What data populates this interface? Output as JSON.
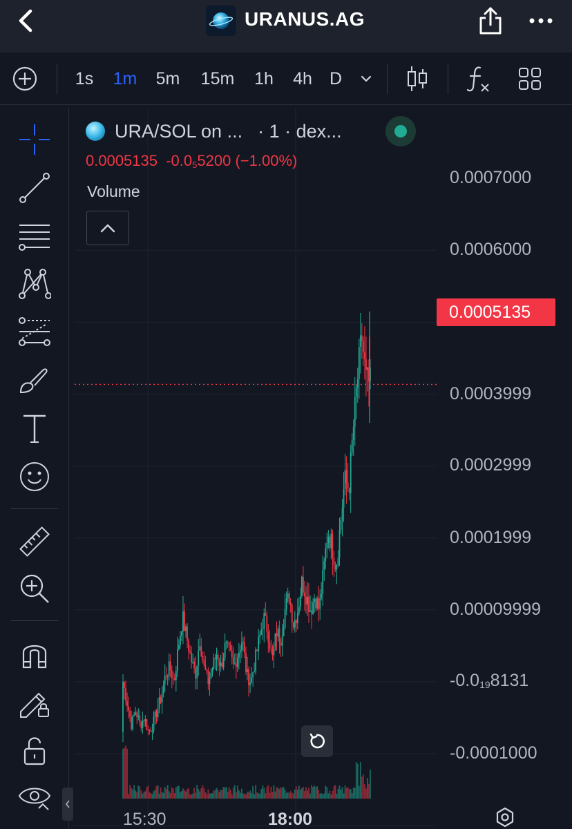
{
  "header": {
    "title": "URANUS.AG",
    "back_icon": "chevron-left-icon",
    "share_icon": "share-icon",
    "more_icon": "more-horizontal-icon"
  },
  "toolbar": {
    "intervals": [
      "1s",
      "1m",
      "5m",
      "15m",
      "1h",
      "4h",
      "D"
    ],
    "active_interval": "1m",
    "tools": [
      "add-symbol-icon",
      "dropdown-chevron-icon",
      "candlestick-icon",
      "indicators-icon",
      "layout-grid-icon"
    ]
  },
  "sidebar": {
    "tools": [
      "crosshair-icon",
      "trend-line-icon",
      "fib-lines-icon",
      "pattern-icon",
      "prediction-icon",
      "brush-icon",
      "text-icon",
      "emoji-icon",
      "ruler-icon",
      "zoom-in-icon",
      "magnet-icon",
      "lock-drawing-icon",
      "unlock-icon",
      "eye-icon"
    ],
    "active_tool": "crosshair-icon"
  },
  "legend": {
    "symbol": "URA/SOL on ...",
    "interval": "· 1 · dex...",
    "last": "0.0005135",
    "change_prefix": "-0.0",
    "change_sub": "5",
    "change_suffix": "5200",
    "change_pct": "(−1.00%)",
    "volume_label": "Volume"
  },
  "price_axis": {
    "labels": [
      {
        "text": "0.0007000"
      },
      {
        "text": "0.0006000"
      },
      {
        "text": "0.0003999"
      },
      {
        "text": "0.0002999"
      },
      {
        "text": "0.0001999"
      },
      {
        "text": "0.00009999"
      },
      {
        "prefix": "-0.0",
        "sub": "19",
        "suffix": "8131"
      },
      {
        "text": "-0.0001000"
      }
    ],
    "last_price": "0.0005135",
    "last_price_color": "#f23645"
  },
  "time_axis": {
    "labels": [
      "15:30",
      "18:00"
    ]
  },
  "colors": {
    "up": "#22ab94",
    "down": "#f23645",
    "accent": "#2962ff",
    "background": "#131722"
  },
  "chart_data": {
    "type": "line",
    "description": "1-minute candlestick price chart of URA/SOL with volume bars",
    "x": [
      "15:30",
      "18:00"
    ],
    "close_path": [
      0.0001,
      7e-05,
      4e-05,
      6e-05,
      4e-05,
      5e-05,
      3e-05,
      4e-05,
      6e-05,
      8e-05,
      0.00011,
      0.00012,
      0.0001,
      0.00015,
      0.00019,
      0.00016,
      0.00013,
      0.00011,
      0.00016,
      0.00012,
      0.0001,
      0.00012,
      0.00014,
      0.00012,
      0.00015,
      0.00014,
      0.00012,
      0.00014,
      0.00016,
      0.00011,
      0.0001,
      0.00013,
      0.00016,
      0.00019,
      0.00017,
      0.00013,
      0.00017,
      0.00016,
      0.0002,
      0.00022,
      0.00018,
      0.0002,
      0.00024,
      0.00022,
      0.0002,
      0.00022,
      0.0002,
      0.00025,
      0.00031,
      0.00029,
      0.00026,
      0.00032,
      0.00038,
      0.00037,
      0.00045,
      0.00052,
      0.00058,
      0.00052,
      0.0005135
    ],
    "last_price": 0.0005135,
    "ylim": [
      -0.00012,
      0.00072
    ],
    "gridlines": [
      0.0007,
      0.0006,
      0.0005,
      0.0004,
      0.0003,
      0.0002,
      0.0001,
      0.0,
      -0.0001
    ]
  }
}
